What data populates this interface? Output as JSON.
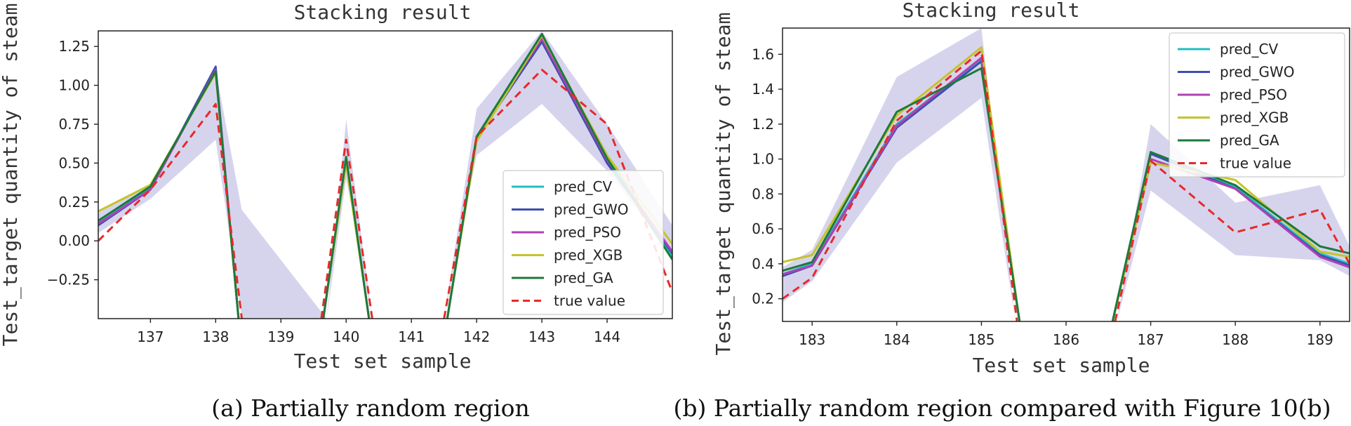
{
  "chart_data": [
    {
      "type": "line",
      "title": "Stacking result",
      "xlabel": "Test set sample",
      "ylabel": "Test_target quantity of steam",
      "caption": "(a) Partially random region",
      "xlim": [
        136.2,
        145.0
      ],
      "ylim": [
        -0.5,
        1.35
      ],
      "xticks": [
        "137",
        "138",
        "139",
        "140",
        "141",
        "142",
        "143",
        "144"
      ],
      "yticks": [
        "−0.25",
        "0.00",
        "0.25",
        "0.50",
        "0.75",
        "1.00",
        "1.25"
      ],
      "legend_position": "lower-right",
      "band": {
        "color": "#cfcdea",
        "lower": [
          [
            136.2,
            0.05
          ],
          [
            137,
            0.27
          ],
          [
            138,
            0.65
          ],
          [
            138.4,
            -0.5
          ],
          [
            139.7,
            -0.5
          ],
          [
            140,
            0.4
          ],
          [
            140.4,
            -0.5
          ],
          [
            141.5,
            -0.5
          ],
          [
            142,
            0.55
          ],
          [
            143,
            0.88
          ],
          [
            144,
            0.45
          ],
          [
            145,
            -0.1
          ]
        ],
        "upper": [
          [
            136.2,
            0.18
          ],
          [
            137,
            0.36
          ],
          [
            138,
            1.1
          ],
          [
            138.4,
            0.2
          ],
          [
            139.7,
            -0.5
          ],
          [
            140,
            0.78
          ],
          [
            140.4,
            -0.5
          ],
          [
            141.5,
            -0.5
          ],
          [
            142,
            0.85
          ],
          [
            143,
            1.35
          ],
          [
            144,
            0.75
          ],
          [
            145,
            0.1
          ]
        ]
      },
      "series": [
        {
          "name": "pred_CV",
          "color": "#1fbfc2",
          "dash": false,
          "points": [
            [
              136.2,
              0.12
            ],
            [
              137,
              0.34
            ],
            [
              138,
              1.1
            ],
            [
              138.35,
              -0.5
            ],
            null,
            [
              139.65,
              -0.5
            ],
            [
              140,
              0.52
            ],
            [
              140.35,
              -0.5
            ],
            null,
            [
              141.55,
              -0.5
            ],
            [
              142,
              0.65
            ],
            [
              143,
              1.3
            ],
            [
              144,
              0.55
            ],
            [
              145,
              -0.1
            ]
          ]
        },
        {
          "name": "pred_GWO",
          "color": "#3d4fb0",
          "dash": false,
          "points": [
            [
              136.2,
              0.1
            ],
            [
              137,
              0.33
            ],
            [
              138,
              1.12
            ],
            [
              138.35,
              -0.5
            ],
            null,
            [
              139.65,
              -0.5
            ],
            [
              140,
              0.53
            ],
            [
              140.35,
              -0.5
            ],
            null,
            [
              141.55,
              -0.5
            ],
            [
              142,
              0.66
            ],
            [
              143,
              1.28
            ],
            [
              144,
              0.5
            ],
            [
              145,
              -0.08
            ]
          ]
        },
        {
          "name": "pred_PSO",
          "color": "#b040b5",
          "dash": false,
          "points": [
            [
              136.2,
              0.11
            ],
            [
              137,
              0.33
            ],
            [
              138,
              1.1
            ],
            [
              138.35,
              -0.5
            ],
            null,
            [
              139.65,
              -0.5
            ],
            [
              140,
              0.52
            ],
            [
              140.35,
              -0.5
            ],
            null,
            [
              141.55,
              -0.5
            ],
            [
              142,
              0.67
            ],
            [
              143,
              1.3
            ],
            [
              144,
              0.52
            ],
            [
              145,
              -0.07
            ]
          ]
        },
        {
          "name": "pred_XGB",
          "color": "#c4c42a",
          "dash": false,
          "points": [
            [
              136.2,
              0.19
            ],
            [
              137,
              0.36
            ],
            [
              138,
              1.08
            ],
            [
              138.35,
              -0.5
            ],
            null,
            [
              139.65,
              -0.5
            ],
            [
              140,
              0.5
            ],
            [
              140.35,
              -0.5
            ],
            null,
            [
              141.55,
              -0.5
            ],
            [
              142,
              0.64
            ],
            [
              143,
              1.32
            ],
            [
              144,
              0.55
            ],
            [
              145,
              -0.02
            ]
          ]
        },
        {
          "name": "pred_GA",
          "color": "#1c7a3c",
          "dash": false,
          "points": [
            [
              136.2,
              0.13
            ],
            [
              137,
              0.35
            ],
            [
              138,
              1.09
            ],
            [
              138.35,
              -0.5
            ],
            null,
            [
              139.65,
              -0.5
            ],
            [
              140,
              0.54
            ],
            [
              140.35,
              -0.5
            ],
            null,
            [
              141.55,
              -0.5
            ],
            [
              142,
              0.67
            ],
            [
              143,
              1.33
            ],
            [
              144,
              0.53
            ],
            [
              145,
              -0.12
            ]
          ]
        },
        {
          "name": "true value",
          "color": "#e8292a",
          "dash": true,
          "points": [
            [
              136.2,
              0.0
            ],
            [
              137,
              0.33
            ],
            [
              138,
              0.88
            ],
            [
              138.4,
              -0.5
            ],
            null,
            [
              139.62,
              -0.5
            ],
            [
              140,
              0.65
            ],
            [
              140.4,
              -0.5
            ],
            null,
            [
              141.5,
              -0.5
            ],
            [
              142,
              0.67
            ],
            [
              143,
              1.1
            ],
            [
              144,
              0.75
            ],
            [
              145,
              -0.33
            ]
          ]
        }
      ]
    },
    {
      "type": "line",
      "title": "Stacking result",
      "xlabel": "Test set sample",
      "ylabel": "Test_target quantity of steam",
      "caption": "(b) Partially random region compared with Figure 10(b)",
      "xlim": [
        182.65,
        189.35
      ],
      "ylim": [
        0.07,
        1.75
      ],
      "xticks": [
        "183",
        "184",
        "185",
        "186",
        "187",
        "188",
        "189"
      ],
      "yticks": [
        "0.2",
        "0.4",
        "0.6",
        "0.8",
        "1.0",
        "1.2",
        "1.4",
        "1.6"
      ],
      "legend_position": "upper-right",
      "band": {
        "color": "#cfcdea",
        "lower": [
          [
            182.65,
            0.18
          ],
          [
            183,
            0.3
          ],
          [
            184,
            0.98
          ],
          [
            185,
            1.35
          ],
          [
            185.4,
            0.07
          ],
          [
            186.6,
            0.07
          ],
          [
            187,
            0.82
          ],
          [
            188,
            0.45
          ],
          [
            189,
            0.42
          ],
          [
            189.35,
            0.33
          ]
        ],
        "upper": [
          [
            182.65,
            0.38
          ],
          [
            183,
            0.48
          ],
          [
            184,
            1.47
          ],
          [
            185,
            1.75
          ],
          [
            185.4,
            0.07
          ],
          [
            186.6,
            0.07
          ],
          [
            187,
            1.2
          ],
          [
            188,
            0.75
          ],
          [
            189,
            0.85
          ],
          [
            189.35,
            0.5
          ]
        ]
      },
      "series": [
        {
          "name": "pred_CV",
          "color": "#1fbfc2",
          "dash": false,
          "points": [
            [
              182.65,
              0.34
            ],
            [
              183,
              0.4
            ],
            [
              184,
              1.2
            ],
            [
              185,
              1.57
            ],
            [
              185.45,
              0.07
            ],
            null,
            [
              186.55,
              0.07
            ],
            [
              187,
              1.03
            ],
            [
              188,
              0.84
            ],
            [
              189,
              0.46
            ],
            [
              189.35,
              0.4
            ]
          ]
        },
        {
          "name": "pred_GWO",
          "color": "#3d4fb0",
          "dash": false,
          "points": [
            [
              182.65,
              0.33
            ],
            [
              183,
              0.39
            ],
            [
              184,
              1.18
            ],
            [
              185,
              1.56
            ],
            [
              185.45,
              0.07
            ],
            null,
            [
              186.55,
              0.07
            ],
            [
              187,
              1.03
            ],
            [
              188,
              0.83
            ],
            [
              189,
              0.45
            ],
            [
              189.35,
              0.39
            ]
          ]
        },
        {
          "name": "pred_PSO",
          "color": "#b040b5",
          "dash": false,
          "points": [
            [
              182.65,
              0.34
            ],
            [
              183,
              0.39
            ],
            [
              184,
              1.19
            ],
            [
              185,
              1.58
            ],
            [
              185.45,
              0.07
            ],
            null,
            [
              186.55,
              0.07
            ],
            [
              187,
              1.0
            ],
            [
              188,
              0.83
            ],
            [
              189,
              0.44
            ],
            [
              189.35,
              0.38
            ]
          ]
        },
        {
          "name": "pred_XGB",
          "color": "#c4c42a",
          "dash": false,
          "points": [
            [
              182.65,
              0.41
            ],
            [
              183,
              0.45
            ],
            [
              184,
              1.25
            ],
            [
              185,
              1.64
            ],
            [
              185.45,
              0.07
            ],
            null,
            [
              186.55,
              0.07
            ],
            [
              187,
              0.98
            ],
            [
              188,
              0.88
            ],
            [
              189,
              0.47
            ],
            [
              189.35,
              0.44
            ]
          ]
        },
        {
          "name": "pred_GA",
          "color": "#1c7a3c",
          "dash": false,
          "points": [
            [
              182.65,
              0.36
            ],
            [
              183,
              0.41
            ],
            [
              184,
              1.27
            ],
            [
              185,
              1.52
            ],
            [
              185.45,
              0.07
            ],
            null,
            [
              186.55,
              0.07
            ],
            [
              187,
              1.04
            ],
            [
              188,
              0.85
            ],
            [
              189,
              0.5
            ],
            [
              189.35,
              0.46
            ]
          ]
        },
        {
          "name": "true value",
          "color": "#e8292a",
          "dash": true,
          "points": [
            [
              182.65,
              0.2
            ],
            [
              183,
              0.32
            ],
            [
              184,
              1.22
            ],
            [
              185,
              1.62
            ],
            [
              185.42,
              0.07
            ],
            null,
            [
              186.58,
              0.07
            ],
            [
              187,
              0.99
            ],
            [
              188,
              0.58
            ],
            [
              189,
              0.71
            ],
            [
              189.35,
              0.4
            ]
          ]
        }
      ]
    }
  ]
}
